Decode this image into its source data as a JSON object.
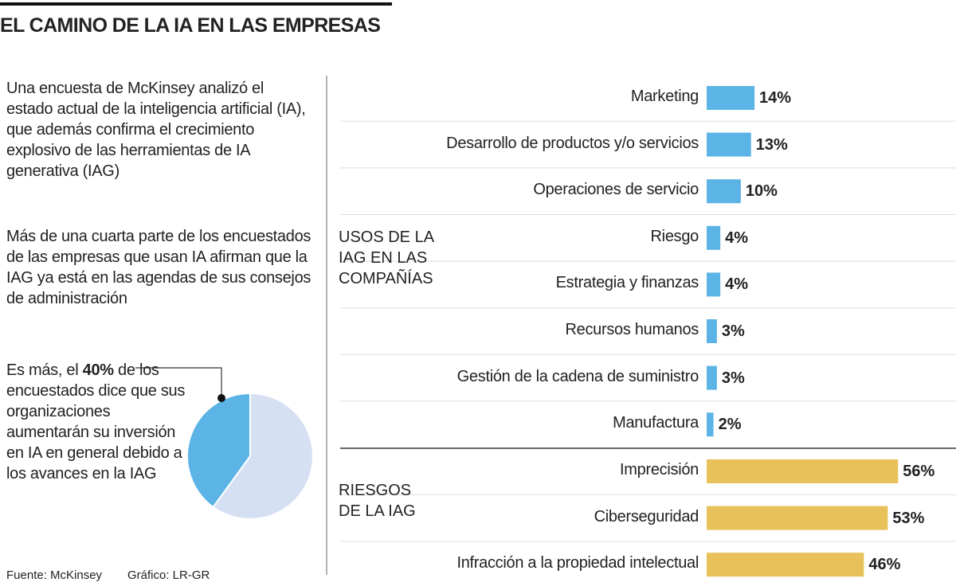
{
  "header": {
    "title": "EL CAMINO DE LA IA EN LAS EMPRESAS"
  },
  "paragraphs": [
    "Una encuesta de McKinsey analizó el estado actual de la inteligencia artificial (IA), que además confirma el crecimiento explosivo de las herramientas de IA generativa (IAG)",
    "Más de una cuarta parte de los encuestados de las empresas que usan IA afirman que la IAG ya está en las agendas de sus consejos de administración"
  ],
  "chart_data": [
    {
      "type": "pie",
      "text_before": "Es más, el",
      "values": [
        40
      ],
      "value_labels": [
        "40%"
      ],
      "text_after": "de los encuestados dice que sus organizaciones aumentarán su inversión en IA en general debido a los avances en la IAG",
      "colors": [
        "#5bb4e5"
      ],
      "rest_color": "#d5e0f2"
    },
    {
      "type": "bar",
      "title": "USOS DE LA IAG EN LAS COMPAÑÍAS",
      "categories": [
        "Marketing",
        "Desarrollo de productos y/o servicios",
        "Operaciones de servicio",
        "Riesgo",
        "Estrategia y finanzas",
        "Recursos humanos",
        "Gestión de la cadena de suministro",
        "Manufactura"
      ],
      "values": [
        14,
        13,
        10,
        4,
        4,
        3,
        3,
        2
      ],
      "value_labels": [
        "14%",
        "13%",
        "10%",
        "4%",
        "4%",
        "3%",
        "3%",
        "2%"
      ],
      "color": "#5bb4e5"
    },
    {
      "type": "bar",
      "title": "RIESGOS DE LA IAG",
      "categories": [
        "Imprecisión",
        "Ciberseguridad",
        "Infracción a la propiedad intelectual"
      ],
      "values": [
        56,
        53,
        46
      ],
      "value_labels": [
        "56%",
        "53%",
        "46%"
      ],
      "color": "#e8c15a"
    }
  ],
  "footer": {
    "source": "Fuente: McKinsey",
    "credit": "Gráfico: LR-GR"
  }
}
